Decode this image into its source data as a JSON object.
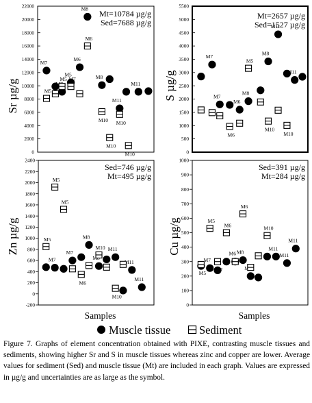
{
  "chart_data": [
    {
      "type": "scatter",
      "element": "Sr",
      "ylabel": "Sr  µg/g",
      "xlabel": "",
      "ylim": [
        0,
        22000
      ],
      "yticks": [
        0,
        2000,
        4000,
        6000,
        8000,
        10000,
        12000,
        14000,
        16000,
        18000,
        20000,
        22000
      ],
      "averages": [
        "Mt=10784 µg/g",
        "Sed=7688 µg/g"
      ],
      "series": [
        {
          "name": "Muscle tissue",
          "points": [
            {
              "x": 0.8,
              "y": 12300,
              "label": "M7"
            },
            {
              "x": 1.6,
              "y": 9900,
              "label": ""
            },
            {
              "x": 2.2,
              "y": 9100,
              "label": "M7"
            },
            {
              "x": 3.0,
              "y": 10500,
              "label": "M5"
            },
            {
              "x": 3.8,
              "y": 12800,
              "label": "M6"
            },
            {
              "x": 4.5,
              "y": 20400,
              "label": "M8"
            },
            {
              "x": 5.8,
              "y": 10100,
              "label": "M8"
            },
            {
              "x": 6.5,
              "y": 11000,
              "label": ""
            },
            {
              "x": 7.4,
              "y": 6600,
              "label": "M11"
            },
            {
              "x": 8.0,
              "y": 9100,
              "label": ""
            },
            {
              "x": 9.1,
              "y": 9100,
              "label": "M11"
            },
            {
              "x": 10.0,
              "y": 9200,
              "label": ""
            }
          ]
        },
        {
          "name": "Sediment",
          "points": [
            {
              "x": 0.8,
              "y": 8100,
              "label": "M5"
            },
            {
              "x": 1.6,
              "y": 8800,
              "label": "M7"
            },
            {
              "x": 2.2,
              "y": 9900,
              "label": "M5"
            },
            {
              "x": 3.0,
              "y": 9900,
              "label": "M7"
            },
            {
              "x": 3.8,
              "y": 8800,
              "label": ""
            },
            {
              "x": 4.5,
              "y": 16000,
              "label": "M6"
            },
            {
              "x": 5.8,
              "y": 6100,
              "label": "M10"
            },
            {
              "x": 6.5,
              "y": 2200,
              "label": "M10"
            },
            {
              "x": 7.4,
              "y": 5700,
              "label": "M10"
            },
            {
              "x": 8.2,
              "y": 1000,
              "label": "M10"
            }
          ]
        }
      ]
    },
    {
      "type": "scatter",
      "element": "S",
      "ylabel": "S  µg/g",
      "xlabel": "",
      "ylim": [
        0,
        5500
      ],
      "yticks": [
        0,
        500,
        1000,
        1500,
        2000,
        2500,
        3000,
        3500,
        4000,
        4500,
        5000,
        5500
      ],
      "averages": [
        "Mt=2657 µg/g",
        "Sed=1527 µg/g"
      ],
      "series": [
        {
          "name": "Muscle tissue",
          "points": [
            {
              "x": 0.8,
              "y": 2850,
              "label": ""
            },
            {
              "x": 1.8,
              "y": 3300,
              "label": "M7"
            },
            {
              "x": 2.5,
              "y": 1800,
              "label": "M7"
            },
            {
              "x": 3.4,
              "y": 1780,
              "label": ""
            },
            {
              "x": 4.3,
              "y": 1600,
              "label": "M6"
            },
            {
              "x": 5.1,
              "y": 1920,
              "label": "M8"
            },
            {
              "x": 6.2,
              "y": 2330,
              "label": ""
            },
            {
              "x": 6.9,
              "y": 3420,
              "label": "M8"
            },
            {
              "x": 7.8,
              "y": 4440,
              "label": "M11"
            },
            {
              "x": 8.6,
              "y": 2960,
              "label": ""
            },
            {
              "x": 9.3,
              "y": 2720,
              "label": "M11"
            },
            {
              "x": 10.0,
              "y": 2840,
              "label": ""
            }
          ]
        },
        {
          "name": "Sediment",
          "points": [
            {
              "x": 0.8,
              "y": 1590,
              "label": ""
            },
            {
              "x": 1.8,
              "y": 1490,
              "label": ""
            },
            {
              "x": 2.5,
              "y": 1370,
              "label": ""
            },
            {
              "x": 3.4,
              "y": 970,
              "label": "M6"
            },
            {
              "x": 4.3,
              "y": 1090,
              "label": ""
            },
            {
              "x": 5.1,
              "y": 3160,
              "label": "M5"
            },
            {
              "x": 6.2,
              "y": 1890,
              "label": ""
            },
            {
              "x": 6.9,
              "y": 1170,
              "label": "M10"
            },
            {
              "x": 7.8,
              "y": 1580,
              "label": ""
            },
            {
              "x": 8.6,
              "y": 1010,
              "label": "M10"
            }
          ]
        }
      ]
    },
    {
      "type": "scatter",
      "element": "Zn",
      "ylabel": "Zn  µg/g",
      "xlabel": "Samples",
      "ylim": [
        -200,
        2400
      ],
      "yticks": [
        -200,
        0,
        200,
        400,
        600,
        800,
        1000,
        1200,
        1400,
        1600,
        1800,
        2000,
        2200,
        2400
      ],
      "averages": [
        "Sed=746 µg/g",
        "Mt=495 µg/g"
      ],
      "series": [
        {
          "name": "Muscle tissue",
          "points": [
            {
              "x": 0.7,
              "y": 480,
              "label": ""
            },
            {
              "x": 1.5,
              "y": 470,
              "label": "M7"
            },
            {
              "x": 2.3,
              "y": 450,
              "label": ""
            },
            {
              "x": 3.1,
              "y": 600,
              "label": "M7"
            },
            {
              "x": 3.9,
              "y": 660,
              "label": ""
            },
            {
              "x": 4.6,
              "y": 880,
              "label": "M8"
            },
            {
              "x": 5.5,
              "y": 500,
              "label": "M8"
            },
            {
              "x": 6.2,
              "y": 620,
              "label": ""
            },
            {
              "x": 7.0,
              "y": 660,
              "label": "M11"
            },
            {
              "x": 7.7,
              "y": 60,
              "label": ""
            },
            {
              "x": 8.5,
              "y": 430,
              "label": "M11"
            },
            {
              "x": 9.4,
              "y": 120,
              "label": "M11"
            }
          ]
        },
        {
          "name": "Sediment",
          "points": [
            {
              "x": 0.7,
              "y": 850,
              "label": "M5"
            },
            {
              "x": 1.5,
              "y": 1920,
              "label": "M5"
            },
            {
              "x": 2.3,
              "y": 1520,
              "label": "M5"
            },
            {
              "x": 3.1,
              "y": 450,
              "label": ""
            },
            {
              "x": 3.9,
              "y": 350,
              "label": "M6"
            },
            {
              "x": 4.6,
              "y": 510,
              "label": ""
            },
            {
              "x": 5.5,
              "y": 700,
              "label": "M10"
            },
            {
              "x": 6.2,
              "y": 480,
              "label": ""
            },
            {
              "x": 7.0,
              "y": 100,
              "label": "M10"
            },
            {
              "x": 7.7,
              "y": 530,
              "label": ""
            }
          ]
        }
      ]
    },
    {
      "type": "scatter",
      "element": "Cu",
      "ylabel": "Cu  µg/g",
      "xlabel": "Samples",
      "ylim": [
        0,
        1000
      ],
      "yticks": [
        0,
        100,
        200,
        300,
        400,
        500,
        600,
        700,
        800,
        900,
        1000
      ],
      "averages": [
        "Sed=391 µg/g",
        "Mt=284 µg/g"
      ],
      "series": [
        {
          "name": "Muscle tissue",
          "points": [
            {
              "x": 0.8,
              "y": 270,
              "label": ""
            },
            {
              "x": 1.6,
              "y": 255,
              "label": "M7"
            },
            {
              "x": 2.3,
              "y": 240,
              "label": ""
            },
            {
              "x": 3.1,
              "y": 300,
              "label": ""
            },
            {
              "x": 3.9,
              "y": 300,
              "label": "M6"
            },
            {
              "x": 4.6,
              "y": 310,
              "label": "M8"
            },
            {
              "x": 5.3,
              "y": 200,
              "label": "M8"
            },
            {
              "x": 6.0,
              "y": 190,
              "label": ""
            },
            {
              "x": 6.8,
              "y": 335,
              "label": ""
            },
            {
              "x": 7.6,
              "y": 335,
              "label": "M11"
            },
            {
              "x": 8.6,
              "y": 290,
              "label": "M11"
            },
            {
              "x": 9.4,
              "y": 390,
              "label": "M11"
            }
          ]
        },
        {
          "name": "Sediment",
          "points": [
            {
              "x": 0.8,
              "y": 280,
              "label": "M5"
            },
            {
              "x": 1.6,
              "y": 530,
              "label": "M5"
            },
            {
              "x": 2.3,
              "y": 300,
              "label": "M7"
            },
            {
              "x": 3.1,
              "y": 500,
              "label": "M6"
            },
            {
              "x": 3.9,
              "y": 300,
              "label": ""
            },
            {
              "x": 4.6,
              "y": 630,
              "label": "M6"
            },
            {
              "x": 5.3,
              "y": 260,
              "label": ""
            },
            {
              "x": 6.0,
              "y": 340,
              "label": ""
            },
            {
              "x": 6.8,
              "y": 480,
              "label": "M10"
            }
          ]
        }
      ]
    }
  ],
  "legend": {
    "muscle": "Muscle tissue",
    "sediment": "Sediment"
  },
  "caption": "Figure 7. Graphs of element concentration obtained with PIXE, contrasting muscle tissues and sediments, showing higher Sr and S in muscle tissues whereas zinc and copper are lower. Average values for sediment (Sed) and muscle tissue (Mt) are included in each graph. Values are expressed in µg/g and uncertainties are as large as the symbol."
}
